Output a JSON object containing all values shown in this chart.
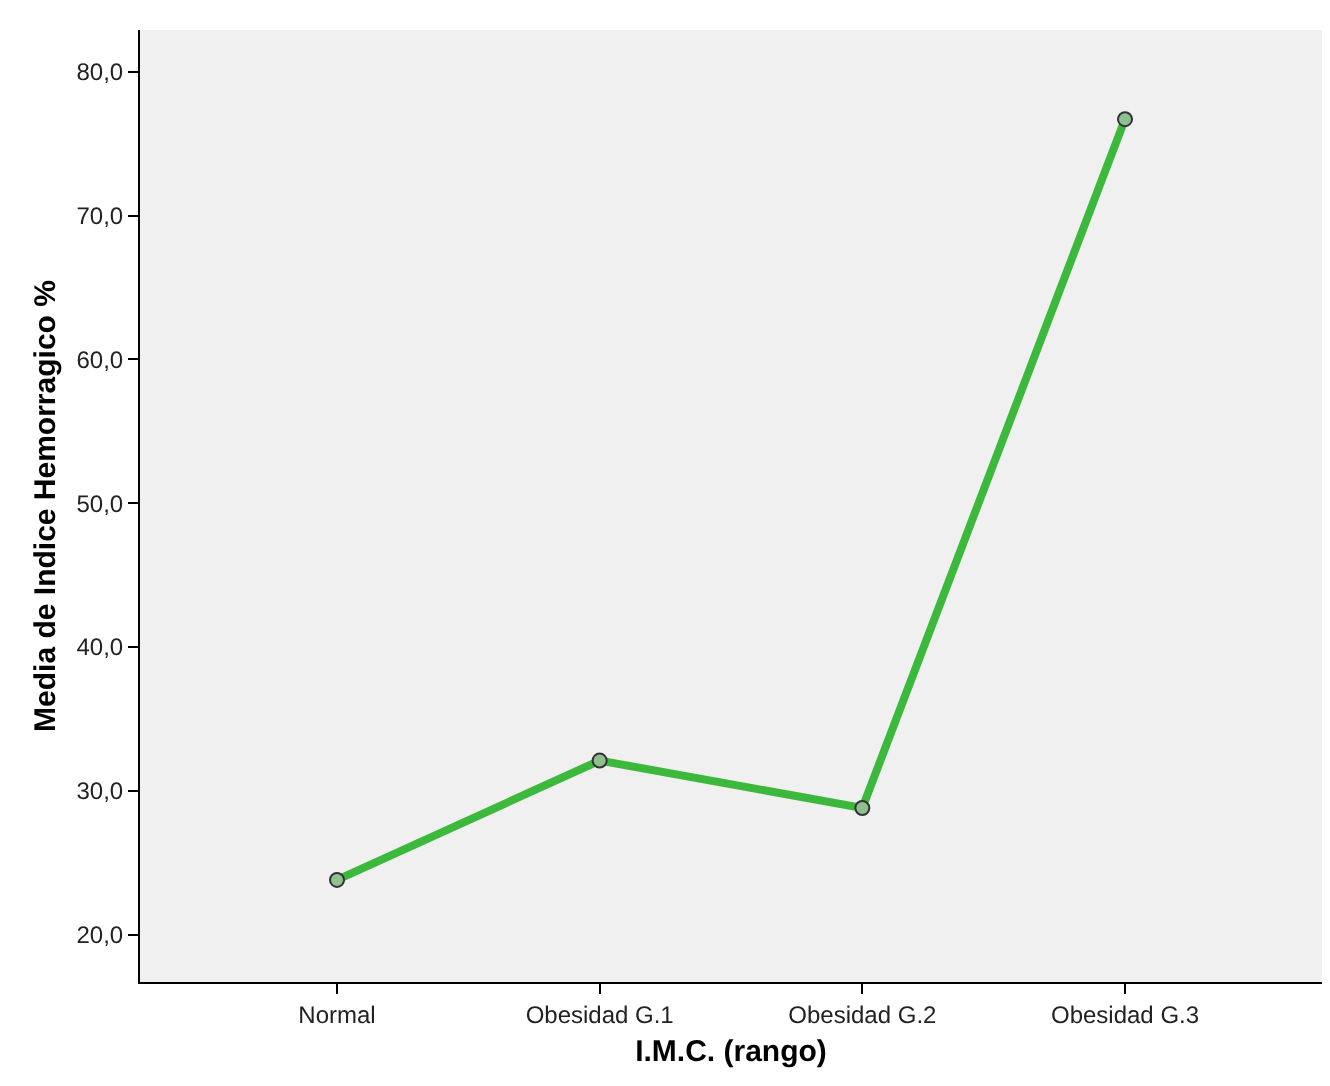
{
  "chart_data": {
    "type": "line",
    "xlabel": "I.M.C. (rango)",
    "ylabel": "Media de Indice Hemorragico %",
    "categories": [
      "Normal",
      "Obesidad G.1",
      "Obesidad G.2",
      "Obesidad G.3"
    ],
    "series": [
      {
        "color": "#3cb93c",
        "values": [
          23.8,
          32.1,
          28.8,
          76.7
        ]
      }
    ],
    "ylim": [
      16.7,
      82.9
    ],
    "yticks": [
      {
        "value": 20,
        "label": "20,0"
      },
      {
        "value": 30,
        "label": "30,0"
      },
      {
        "value": 40,
        "label": "40,0"
      },
      {
        "value": 50,
        "label": "50,0"
      },
      {
        "value": 60,
        "label": "60,0"
      },
      {
        "value": 70,
        "label": "70,0"
      },
      {
        "value": 80,
        "label": "80,0"
      }
    ],
    "grid": false,
    "marker": "circle",
    "line_style": "solid"
  }
}
